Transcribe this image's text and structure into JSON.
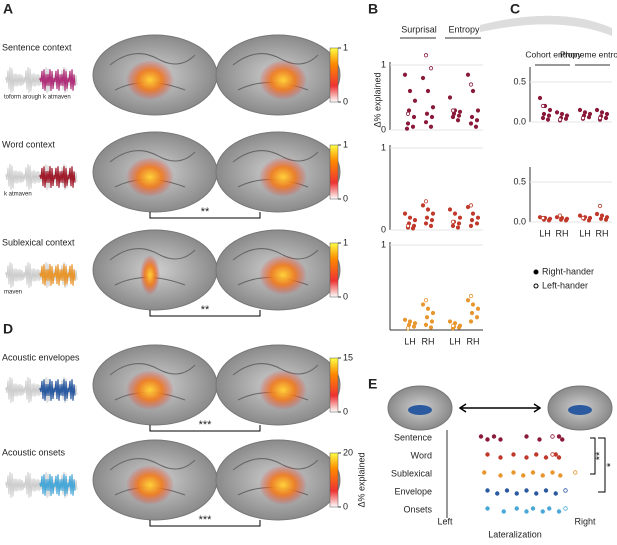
{
  "figure": {
    "panel_labels": [
      "A",
      "B",
      "C",
      "D",
      "E"
    ],
    "brain_rows": [
      {
        "label": "Sentence context",
        "wave_label": "toform arough  k atmaven",
        "wave_color": "#b0307a",
        "colorbar_ticks": [
          0,
          1
        ]
      },
      {
        "label": "Word context",
        "wave_label": "k atmaven",
        "wave_color": "#a01c2c",
        "colorbar_ticks": [
          0,
          1
        ],
        "significance": "**"
      },
      {
        "label": "Sublexical context",
        "wave_label": "maven",
        "wave_color": "#e8962e",
        "colorbar_ticks": [
          0,
          1
        ],
        "significance": "**"
      },
      {
        "label": "Acoustic envelopes",
        "wave_color": "#2c5aa0",
        "colorbar_ticks": [
          0,
          15
        ],
        "significance": "***"
      },
      {
        "label": "Acoustic onsets",
        "wave_color": "#4aa8d8",
        "colorbar_ticks": [
          0,
          20
        ],
        "significance": "***",
        "colorbar_label": "Δ% explained"
      }
    ]
  },
  "chart_data": [
    {
      "type": "strip",
      "ylabel": "Δ% explained",
      "group_labels": [
        "Surprisal",
        "Entropy"
      ],
      "categories": [
        "LH",
        "RH",
        "LH",
        "RH"
      ],
      "rows": [
        {
          "color": "#8b1a3a",
          "ylim": [
            0,
            1
          ],
          "yticks": [
            0,
            1
          ],
          "right_hander": [
            [
              0.85,
              0.6,
              0.45,
              0.3,
              0.2,
              0.1,
              0.05,
              0.02
            ],
            [
              0.8,
              0.6,
              0.35,
              0.25,
              0.2,
              0.12,
              0.05
            ],
            [
              0.5,
              0.3,
              0.28,
              0.25,
              0.22,
              0.2,
              0.15
            ],
            [
              0.85,
              0.6,
              0.3,
              0.2,
              0.15,
              0.1,
              0.05
            ]
          ],
          "left_hander": [
            [
              0.25
            ],
            [
              1.15,
              0.95
            ],
            [
              0.3
            ],
            [
              0.7
            ]
          ]
        },
        {
          "color": "#c0392b",
          "ylim": [
            0,
            1
          ],
          "yticks": [
            0,
            1
          ],
          "right_hander": [
            [
              0.2,
              0.15,
              0.12,
              0.08,
              0.05,
              0.03,
              0.02
            ],
            [
              0.3,
              0.25,
              0.2,
              0.15,
              0.12,
              0.08,
              0.05
            ],
            [
              0.25,
              0.2,
              0.15,
              0.1,
              0.08,
              0.05,
              0.03
            ],
            [
              0.28,
              0.2,
              0.15,
              0.12,
              0.08,
              0.05
            ]
          ],
          "left_hander": [
            [
              0.05
            ],
            [
              0.35
            ],
            [
              0.1
            ],
            [
              0.3
            ]
          ]
        },
        {
          "color": "#e8962e",
          "ylim": [
            0,
            1
          ],
          "yticks": [
            1
          ],
          "right_hander": [
            [
              0.12,
              0.1,
              0.08,
              0.06,
              0.04,
              0.02
            ],
            [
              0.3,
              0.25,
              0.2,
              0.15,
              0.1,
              0.06,
              0.03
            ],
            [
              0.1,
              0.08,
              0.05,
              0.04,
              0.03,
              0.02
            ],
            [
              0.35,
              0.3,
              0.25,
              0.2,
              0.15,
              0.1
            ]
          ],
          "left_hander": [
            [
              0.02
            ],
            [
              0.35
            ],
            [
              0.05
            ],
            [
              0.4
            ]
          ]
        }
      ]
    },
    {
      "type": "strip",
      "group_labels": [
        "Cohort entropy",
        "Phoneme entropy"
      ],
      "categories": [
        "LH",
        "RH",
        "LH",
        "RH"
      ],
      "legend": [
        "Right-hander",
        "Left-hander"
      ],
      "rows": [
        {
          "color": "#8b1a3a",
          "ylim": [
            0,
            0.65
          ],
          "yticks": [
            {
              "value": 0,
              "label": "0.0"
            },
            {
              "value": 0.5,
              "label": "0.5"
            }
          ],
          "right_hander": [
            [
              0.3,
              0.2,
              0.15,
              0.1,
              0.08,
              0.05,
              0.03
            ],
            [
              0.12,
              0.1,
              0.08,
              0.05,
              0.04,
              0.02
            ],
            [
              0.15,
              0.12,
              0.1,
              0.08,
              0.06,
              0.04
            ],
            [
              0.15,
              0.12,
              0.1,
              0.07,
              0.05,
              0.03
            ]
          ],
          "left_hander": [
            [
              0.2
            ],
            [
              0.03
            ],
            [
              0.05
            ],
            [
              0.05
            ]
          ]
        },
        {
          "color": "#c0392b",
          "ylim": [
            0,
            0.65
          ],
          "yticks": [
            {
              "value": 0,
              "label": "0.0"
            },
            {
              "value": 0.5,
              "label": "0.5"
            }
          ],
          "right_hander": [
            [
              0.06,
              0.05,
              0.04,
              0.03,
              0.02
            ],
            [
              0.06,
              0.05,
              0.04,
              0.03,
              0.02
            ],
            [
              0.08,
              0.06,
              0.05,
              0.04,
              0.02
            ],
            [
              0.1,
              0.08,
              0.06,
              0.04,
              0.03
            ]
          ],
          "left_hander": [
            [
              0.05
            ],
            [
              0.08
            ],
            [
              0.05
            ],
            [
              0.2
            ]
          ]
        }
      ]
    },
    {
      "type": "lateral",
      "xlabel": "Lateralization",
      "xlim": [
        -1,
        1
      ],
      "end_labels": [
        "Left",
        "Right"
      ],
      "categories": [
        "Sentence",
        "Word",
        "Sublexical",
        "Envelope",
        "Onsets"
      ],
      "colors": [
        "#8b1a3a",
        "#c0392b",
        "#e8962e",
        "#2c5aa0",
        "#4aa8d8"
      ],
      "right_hander": [
        [
          -0.6,
          -0.5,
          -0.4,
          -0.3,
          0.1,
          0.3,
          0.6,
          0.65
        ],
        [
          -0.5,
          -0.3,
          -0.1,
          0.1,
          0.25,
          0.4,
          0.55,
          0.6
        ],
        [
          -0.55,
          -0.3,
          -0.1,
          0.05,
          0.2,
          0.35,
          0.5,
          0.62
        ],
        [
          -0.5,
          -0.35,
          -0.2,
          -0.05,
          0.1,
          0.25,
          0.4,
          0.55
        ],
        [
          -0.5,
          -0.25,
          -0.05,
          0.1,
          0.2,
          0.35,
          0.45,
          0.6
        ]
      ],
      "left_hander": [
        [
          0.5
        ],
        [
          0.5
        ],
        [
          0.85
        ],
        [
          0.7
        ],
        [
          0.7
        ]
      ],
      "significance": [
        "**",
        "*"
      ]
    }
  ]
}
